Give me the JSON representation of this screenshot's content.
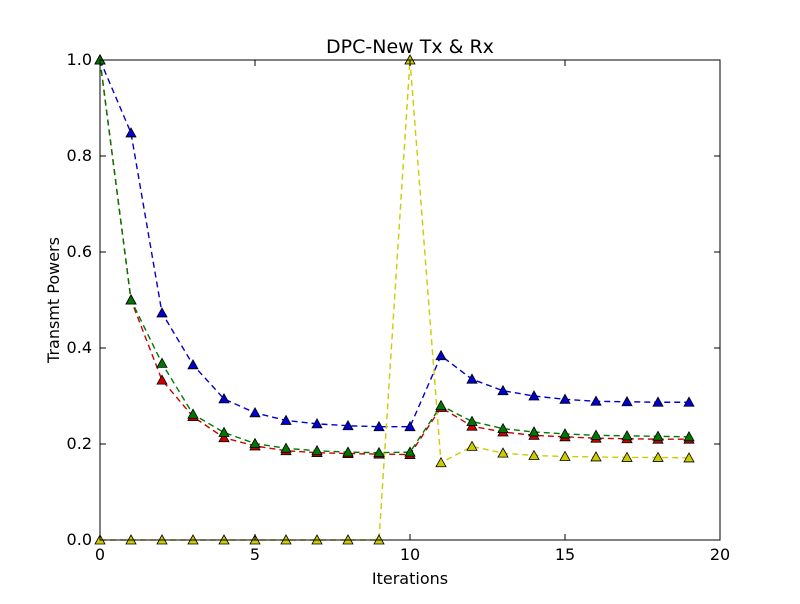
{
  "chart_data": {
    "type": "line",
    "title": "DPC-New Tx & Rx",
    "xlabel": "Iterations",
    "ylabel": "Transmt Powers",
    "xlim": [
      0,
      20
    ],
    "ylim": [
      0,
      1.0
    ],
    "xticks": [
      0,
      5,
      10,
      15,
      20
    ],
    "yticks": [
      0.0,
      0.2,
      0.4,
      0.6,
      0.8,
      1.0
    ],
    "xtick_labels": [
      "0",
      "5",
      "10",
      "15",
      "20"
    ],
    "ytick_labels": [
      "0.0",
      "0.2",
      "0.4",
      "0.6",
      "0.8",
      "1.0"
    ],
    "grid": false,
    "line_style": "dashed",
    "marker": "triangle-up",
    "x": [
      0,
      1,
      2,
      3,
      4,
      5,
      6,
      7,
      8,
      9,
      10,
      11,
      12,
      13,
      14,
      15,
      16,
      17,
      18,
      19
    ],
    "series": [
      {
        "color": "#0000cc",
        "values": [
          1.0,
          0.848,
          0.473,
          0.365,
          0.294,
          0.265,
          0.249,
          0.242,
          0.238,
          0.236,
          0.236,
          0.384,
          0.335,
          0.311,
          0.3,
          0.293,
          0.289,
          0.288,
          0.287,
          0.287
        ]
      },
      {
        "color": "#cc0000",
        "values": [
          1.0,
          0.5,
          0.333,
          0.257,
          0.213,
          0.196,
          0.186,
          0.182,
          0.18,
          0.179,
          0.178,
          0.276,
          0.237,
          0.225,
          0.218,
          0.215,
          0.212,
          0.211,
          0.21,
          0.21
        ]
      },
      {
        "color": "#007700",
        "values": [
          1.0,
          0.5,
          0.368,
          0.262,
          0.224,
          0.201,
          0.191,
          0.186,
          0.183,
          0.182,
          0.183,
          0.28,
          0.247,
          0.232,
          0.225,
          0.221,
          0.218,
          0.217,
          0.216,
          0.215
        ]
      },
      {
        "color": "#cccc00",
        "values": [
          0,
          0,
          0,
          0,
          0,
          0,
          0,
          0,
          0,
          0,
          1.0,
          0.161,
          0.195,
          0.181,
          0.176,
          0.174,
          0.173,
          0.172,
          0.172,
          0.171
        ]
      }
    ]
  }
}
